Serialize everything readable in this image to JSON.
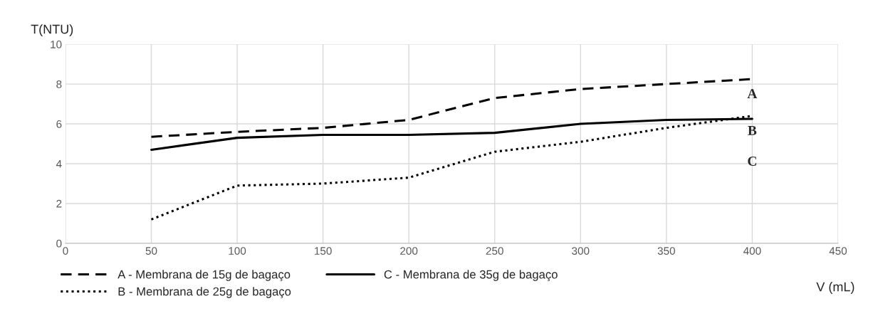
{
  "chart_data": {
    "type": "line",
    "xlabel": "V (mL)",
    "ylabel": "T(NTU)",
    "x": [
      50,
      100,
      150,
      200,
      250,
      300,
      350,
      400
    ],
    "series": [
      {
        "name": "A - Membrana de 15g de bagaço",
        "color": "#000000",
        "line_style": "dashed",
        "values": [
          5.35,
          5.6,
          5.8,
          6.2,
          7.3,
          7.75,
          8.0,
          8.25
        ]
      },
      {
        "name": "B - Membrana de 25g de bagaço",
        "color": "#000000",
        "line_style": "dotted",
        "values": [
          1.2,
          2.9,
          3.0,
          3.3,
          4.6,
          5.1,
          5.8,
          6.4
        ]
      },
      {
        "name": "C - Membrana de 35g de bagaço",
        "color": "#000000",
        "line_style": "solid",
        "values": [
          4.7,
          5.3,
          5.45,
          5.45,
          5.55,
          6.0,
          6.2,
          6.25
        ]
      }
    ],
    "annotations": [
      "A",
      "B",
      "C"
    ],
    "xlim": [
      0,
      450
    ],
    "xticks": [
      0,
      50,
      100,
      150,
      200,
      250,
      300,
      350,
      400,
      450
    ],
    "ylim": [
      0,
      10
    ],
    "yticks": [
      0,
      2,
      4,
      6,
      8,
      10
    ],
    "grid": true,
    "legend": "bottom"
  }
}
